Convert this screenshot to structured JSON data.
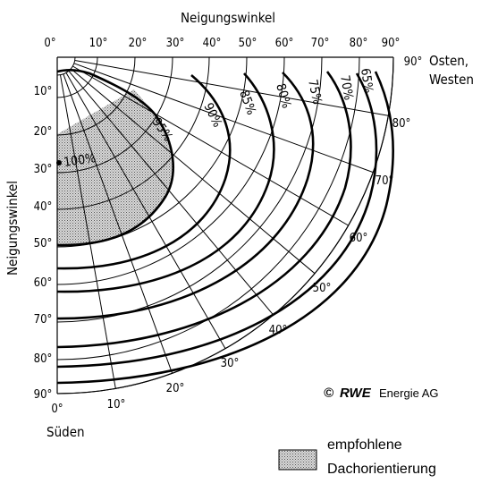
{
  "diagram": {
    "title_top": "Neigungswinkel",
    "title_left": "Neigungswinkel",
    "top_ticks": [
      "0°",
      "10°",
      "20°",
      "30°",
      "40°",
      "50°",
      "60°",
      "70°",
      "80°",
      "90°"
    ],
    "left_ticks": [
      "10°",
      "20°",
      "30°",
      "40°",
      "50°",
      "60°",
      "70°",
      "80°",
      "90°"
    ],
    "orientation_ticks": [
      "0°",
      "10°",
      "20°",
      "30°",
      "40°",
      "50°",
      "60°",
      "70°",
      "80°",
      "90°"
    ],
    "south_label": "Süden",
    "east_west_label_1": "Osten,",
    "east_west_label_2": "Westen",
    "curves": [
      {
        "label": "100%"
      },
      {
        "label": "95%"
      },
      {
        "label": "90%"
      },
      {
        "label": "85%"
      },
      {
        "label": "80%"
      },
      {
        "label": "75%"
      },
      {
        "label": "70%"
      },
      {
        "label": "65%"
      }
    ],
    "copyright_symbol": "©",
    "copyright_brand": "RWE",
    "copyright_rest": "Energie AG",
    "legend": {
      "line1": "empfohlene",
      "line2": "Dachorientierung"
    },
    "colors": {
      "recommended_fill": "#bdbdbd",
      "lines": "#000000"
    }
  }
}
